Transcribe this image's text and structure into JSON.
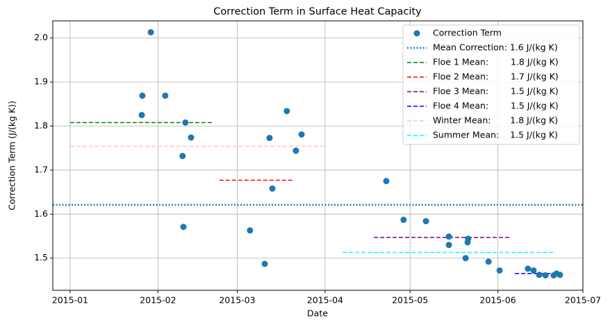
{
  "chart_data": {
    "type": "scatter",
    "title": "Correction Term in Surface Heat Capacity",
    "x_label": "Date",
    "y_label": "Correction Term (J/(kg K))",
    "xlim": [
      -6.1,
      181
    ],
    "xticks": [
      {
        "value": 0,
        "label": "2015-01"
      },
      {
        "value": 31,
        "label": "2015-02"
      },
      {
        "value": 59,
        "label": "2015-03"
      },
      {
        "value": 90,
        "label": "2015-04"
      },
      {
        "value": 120,
        "label": "2015-05"
      },
      {
        "value": 151,
        "label": "2015-06"
      },
      {
        "value": 181,
        "label": "2015-07"
      }
    ],
    "ylim": [
      1.427,
      2.039
    ],
    "yticks": [
      1.5,
      1.6,
      1.7,
      1.8,
      1.9,
      {
        "value": 2.0,
        "label": "2.0"
      }
    ],
    "grid": true,
    "legend": "upper right",
    "x": [
      28.5,
      25.5,
      25.3,
      33.6,
      40.7,
      42.7,
      39.7,
      40.0,
      63.5,
      68.7,
      70.4,
      71.4,
      76.5,
      79.7,
      81.7,
      111.6,
      117.7,
      125.6,
      133.7,
      133.7,
      140.5,
      140.3,
      139.6,
      147.7,
      151.6,
      161.6,
      163.6,
      165.6,
      167.8,
      170.7,
      171.7,
      172.9
    ],
    "series": [
      {
        "name": "Correction Term",
        "color": "#1f77b4",
        "values": [
          2.013,
          1.869,
          1.825,
          1.869,
          1.808,
          1.774,
          1.732,
          1.571,
          1.563,
          1.487,
          1.773,
          1.658,
          1.834,
          1.744,
          1.781,
          1.675,
          1.587,
          1.584,
          1.549,
          1.53,
          1.544,
          1.536,
          1.5,
          1.492,
          1.472,
          1.476,
          1.472,
          1.462,
          1.461,
          1.461,
          1.465,
          1.462
        ]
      }
    ],
    "lines": [
      {
        "name": "Mean Correction: 1.6 J/(kg K)",
        "color": "#1f77b4",
        "style": "dotted",
        "y": 1.621
      },
      {
        "name": "Floe 1 Mean:        1.8 J/(kg K)",
        "color": "green",
        "style": "dashed",
        "x": [
          0,
          50.5
        ],
        "y": 1.808
      },
      {
        "name": "Floe 2 Mean:        1.7 J/(kg K)",
        "color": "red",
        "style": "dashed",
        "x": [
          52.7,
          79.2
        ],
        "y": 1.677
      },
      {
        "name": "Floe 3 Mean:        1.5 J/(kg K)",
        "color": "purple",
        "style": "dashed",
        "x": [
          107.2,
          155.5
        ],
        "y": 1.547
      },
      {
        "name": "Floe 4 Mean:        1.5 J/(kg K)",
        "color": "blue",
        "style": "dashed",
        "x": [
          157,
          171.4
        ],
        "y": 1.465
      },
      {
        "name": "Winter Mean:       1.8 J/(kg K)",
        "color": "pink",
        "style": "dashed",
        "x": [
          0,
          89.8
        ],
        "y": 1.754
      },
      {
        "name": "Summer Mean:    1.5 J/(kg K)",
        "color": "cyan",
        "style": "dashed",
        "x": [
          96.2,
          171.4
        ],
        "y": 1.513
      }
    ]
  }
}
